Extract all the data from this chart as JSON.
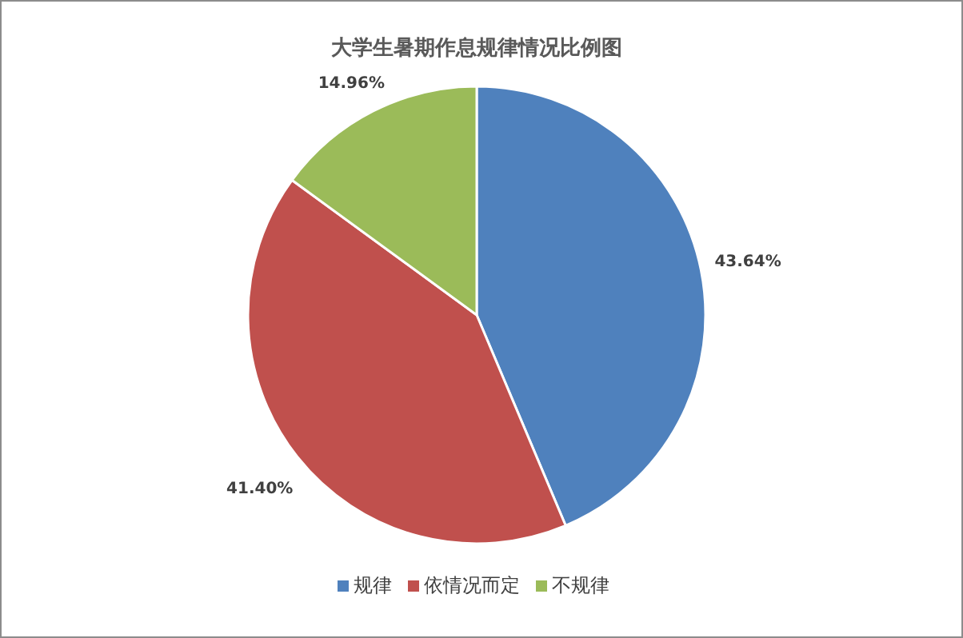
{
  "chart_data": {
    "type": "pie",
    "title": "大学生暑期作息规律情况比例图",
    "categories": [
      "规律",
      "依情况而定",
      "不规律"
    ],
    "values": [
      43.64,
      41.4,
      14.96
    ],
    "value_labels": [
      "43.64%",
      "41.40%",
      "14.96%"
    ],
    "colors": [
      "#4f81bd",
      "#c0504d",
      "#9bbb59"
    ],
    "legend": "bottom"
  }
}
